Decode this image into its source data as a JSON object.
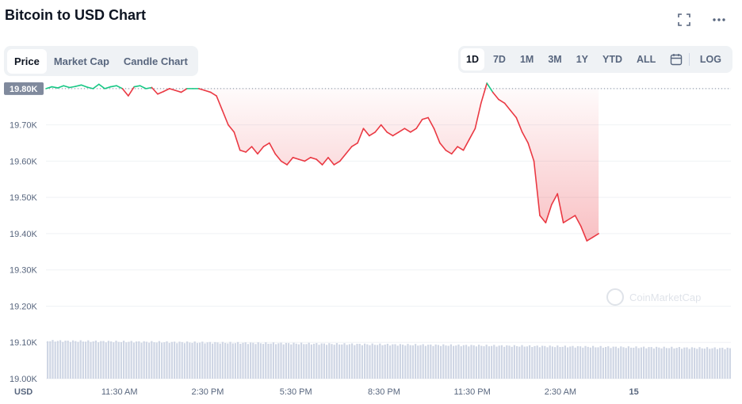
{
  "header": {
    "title": "Bitcoin to USD Chart"
  },
  "icons": {
    "fullscreen": "fullscreen-icon",
    "more": "more-icon",
    "calendar": "calendar-icon",
    "watermark": "coinmarketcap-logo"
  },
  "tabs": [
    {
      "label": "Price",
      "active": true
    },
    {
      "label": "Market Cap",
      "active": false
    },
    {
      "label": "Candle Chart",
      "active": false
    }
  ],
  "ranges": [
    {
      "label": "1D",
      "active": true
    },
    {
      "label": "7D",
      "active": false
    },
    {
      "label": "1M",
      "active": false
    },
    {
      "label": "3M",
      "active": false
    },
    {
      "label": "1Y",
      "active": false
    },
    {
      "label": "YTD",
      "active": false
    },
    {
      "label": "ALL",
      "active": false
    }
  ],
  "log_label": "LOG",
  "colors": {
    "up": "#16c784",
    "down": "#ea3943",
    "fill": "#ea3943",
    "volume": "#cfd6e4",
    "grid": "#eff2f5",
    "current_badge": "#808a9d"
  },
  "chart_data": {
    "type": "line",
    "currency_label": "USD",
    "watermark": "CoinMarketCap",
    "y_ticks": [
      "19.00K",
      "19.10K",
      "19.20K",
      "19.30K",
      "19.40K",
      "19.50K",
      "19.60K",
      "19.70K",
      "19.80K"
    ],
    "y_tick_values": [
      19000,
      19100,
      19200,
      19300,
      19400,
      19500,
      19600,
      19700,
      19800
    ],
    "ylim": [
      19000,
      19815
    ],
    "opening_price": 19800,
    "x_tick_labels": [
      "11:30 AM",
      "2:30 PM",
      "5:30 PM",
      "8:30 PM",
      "11:30 PM",
      "2:30 AM",
      "15"
    ],
    "x_tick_times": [
      2.5,
      5.5,
      8.5,
      11.5,
      14.5,
      17.5,
      20.0
    ],
    "xlim": [
      0,
      23.3
    ],
    "time_unit": "hours",
    "price_series": [
      [
        0.0,
        19800
      ],
      [
        0.2,
        19805
      ],
      [
        0.4,
        19802
      ],
      [
        0.6,
        19808
      ],
      [
        0.8,
        19803
      ],
      [
        1.0,
        19806
      ],
      [
        1.2,
        19810
      ],
      [
        1.4,
        19804
      ],
      [
        1.6,
        19800
      ],
      [
        1.8,
        19812
      ],
      [
        2.0,
        19800
      ],
      [
        2.2,
        19805
      ],
      [
        2.4,
        19808
      ],
      [
        2.6,
        19800
      ],
      [
        2.8,
        19780
      ],
      [
        3.0,
        19805
      ],
      [
        3.2,
        19808
      ],
      [
        3.4,
        19800
      ],
      [
        3.6,
        19803
      ],
      [
        3.8,
        19785
      ],
      [
        4.0,
        19792
      ],
      [
        4.2,
        19800
      ],
      [
        4.4,
        19795
      ],
      [
        4.6,
        19790
      ],
      [
        4.8,
        19800
      ],
      [
        5.0,
        19800
      ],
      [
        5.2,
        19800
      ],
      [
        5.4,
        19795
      ],
      [
        5.6,
        19790
      ],
      [
        5.8,
        19780
      ],
      [
        6.0,
        19740
      ],
      [
        6.2,
        19700
      ],
      [
        6.4,
        19680
      ],
      [
        6.6,
        19630
      ],
      [
        6.8,
        19625
      ],
      [
        7.0,
        19640
      ],
      [
        7.2,
        19620
      ],
      [
        7.4,
        19640
      ],
      [
        7.6,
        19650
      ],
      [
        7.8,
        19620
      ],
      [
        8.0,
        19600
      ],
      [
        8.2,
        19590
      ],
      [
        8.4,
        19610
      ],
      [
        8.6,
        19605
      ],
      [
        8.8,
        19600
      ],
      [
        9.0,
        19610
      ],
      [
        9.2,
        19605
      ],
      [
        9.4,
        19590
      ],
      [
        9.6,
        19610
      ],
      [
        9.8,
        19590
      ],
      [
        10.0,
        19600
      ],
      [
        10.2,
        19620
      ],
      [
        10.4,
        19640
      ],
      [
        10.6,
        19650
      ],
      [
        10.8,
        19690
      ],
      [
        11.0,
        19670
      ],
      [
        11.2,
        19680
      ],
      [
        11.4,
        19700
      ],
      [
        11.6,
        19680
      ],
      [
        11.8,
        19670
      ],
      [
        12.0,
        19680
      ],
      [
        12.2,
        19690
      ],
      [
        12.4,
        19680
      ],
      [
        12.6,
        19690
      ],
      [
        12.8,
        19715
      ],
      [
        13.0,
        19720
      ],
      [
        13.2,
        19690
      ],
      [
        13.4,
        19650
      ],
      [
        13.6,
        19630
      ],
      [
        13.8,
        19620
      ],
      [
        14.0,
        19640
      ],
      [
        14.2,
        19630
      ],
      [
        14.4,
        19660
      ],
      [
        14.6,
        19690
      ],
      [
        14.8,
        19760
      ],
      [
        15.0,
        19815
      ],
      [
        15.2,
        19790
      ],
      [
        15.4,
        19770
      ],
      [
        15.6,
        19760
      ],
      [
        15.8,
        19740
      ],
      [
        16.0,
        19720
      ],
      [
        16.2,
        19680
      ],
      [
        16.4,
        19650
      ],
      [
        16.6,
        19600
      ],
      [
        16.8,
        19450
      ],
      [
        17.0,
        19430
      ],
      [
        17.2,
        19480
      ],
      [
        17.4,
        19510
      ],
      [
        17.6,
        19430
      ],
      [
        17.8,
        19440
      ],
      [
        18.0,
        19450
      ],
      [
        18.2,
        19420
      ],
      [
        18.4,
        19380
      ],
      [
        18.6,
        19390
      ],
      [
        18.8,
        19400
      ]
    ]
  }
}
